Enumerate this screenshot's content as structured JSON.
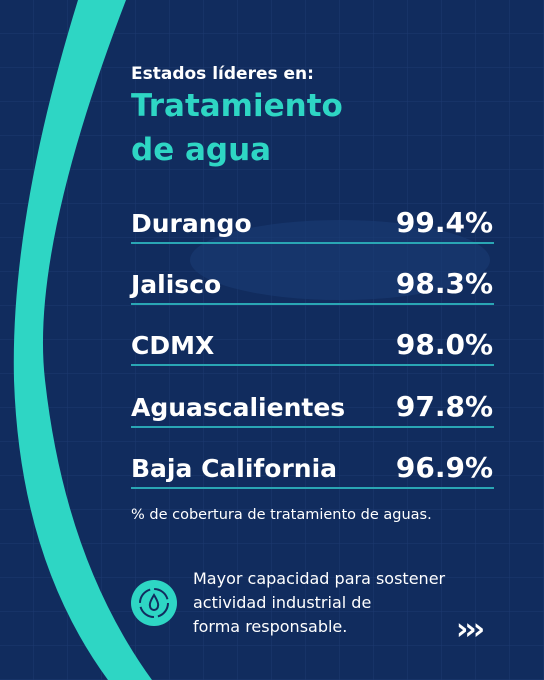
{
  "header": {
    "kicker": "Estados líderes en:",
    "title_lines": [
      "Tratamiento",
      "de agua"
    ]
  },
  "rows": [
    {
      "state": "Durango",
      "value": "99.4%"
    },
    {
      "state": "Jalisco",
      "value": "98.3%"
    },
    {
      "state": "CDMX",
      "value": "98.0%"
    },
    {
      "state": "Aguascalientes",
      "value": "97.8%"
    },
    {
      "state": "Baja California",
      "value": "96.9%"
    }
  ],
  "footnote": "% de cobertura de tratamiento de aguas.",
  "callout": {
    "lines": [
      "Mayor capacidad para sostener",
      "actividad industrial de",
      "forma responsable."
    ],
    "more": "›››"
  }
}
